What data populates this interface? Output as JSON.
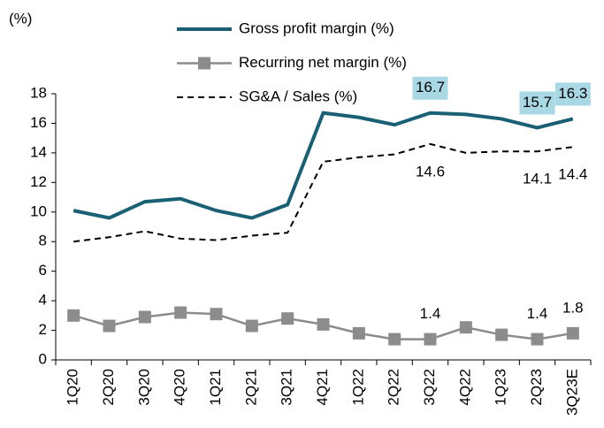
{
  "chart_data": {
    "type": "line",
    "y_label": "(%)",
    "categories": [
      "1Q20",
      "2Q20",
      "3Q20",
      "4Q20",
      "1Q21",
      "2Q21",
      "3Q21",
      "4Q21",
      "1Q22",
      "2Q22",
      "3Q22",
      "4Q22",
      "1Q23",
      "2Q23",
      "3Q23E"
    ],
    "series": [
      {
        "name": "Gross profit margin (%)",
        "color": "#1a6075",
        "style": "solid",
        "values": [
          10.1,
          9.6,
          10.7,
          10.9,
          10.1,
          9.6,
          10.5,
          16.7,
          16.4,
          15.9,
          16.7,
          16.6,
          16.3,
          15.7,
          16.3
        ],
        "labels_at": [
          10,
          13,
          14
        ],
        "label_box": "#a8d8e3"
      },
      {
        "name": "Recurring net margin (%)",
        "color": "#8c8c8c",
        "style": "marker",
        "values": [
          3.0,
          2.3,
          2.9,
          3.2,
          3.1,
          2.3,
          2.8,
          2.4,
          1.8,
          1.4,
          1.4,
          2.2,
          1.7,
          1.4,
          1.8
        ],
        "labels_at": [
          10,
          13,
          14
        ]
      },
      {
        "name": "SG&A / Sales (%)",
        "color": "#000000",
        "style": "dashed",
        "values": [
          8.0,
          8.3,
          8.7,
          8.2,
          8.1,
          8.4,
          8.6,
          13.4,
          13.7,
          13.9,
          14.6,
          14.0,
          14.1,
          14.1,
          14.4
        ],
        "labels_at": [
          10,
          13,
          14
        ]
      }
    ],
    "ylim": [
      0,
      18
    ],
    "yticks": [
      0,
      2,
      4,
      6,
      8,
      10,
      12,
      14,
      16,
      18
    ],
    "grid": false
  }
}
